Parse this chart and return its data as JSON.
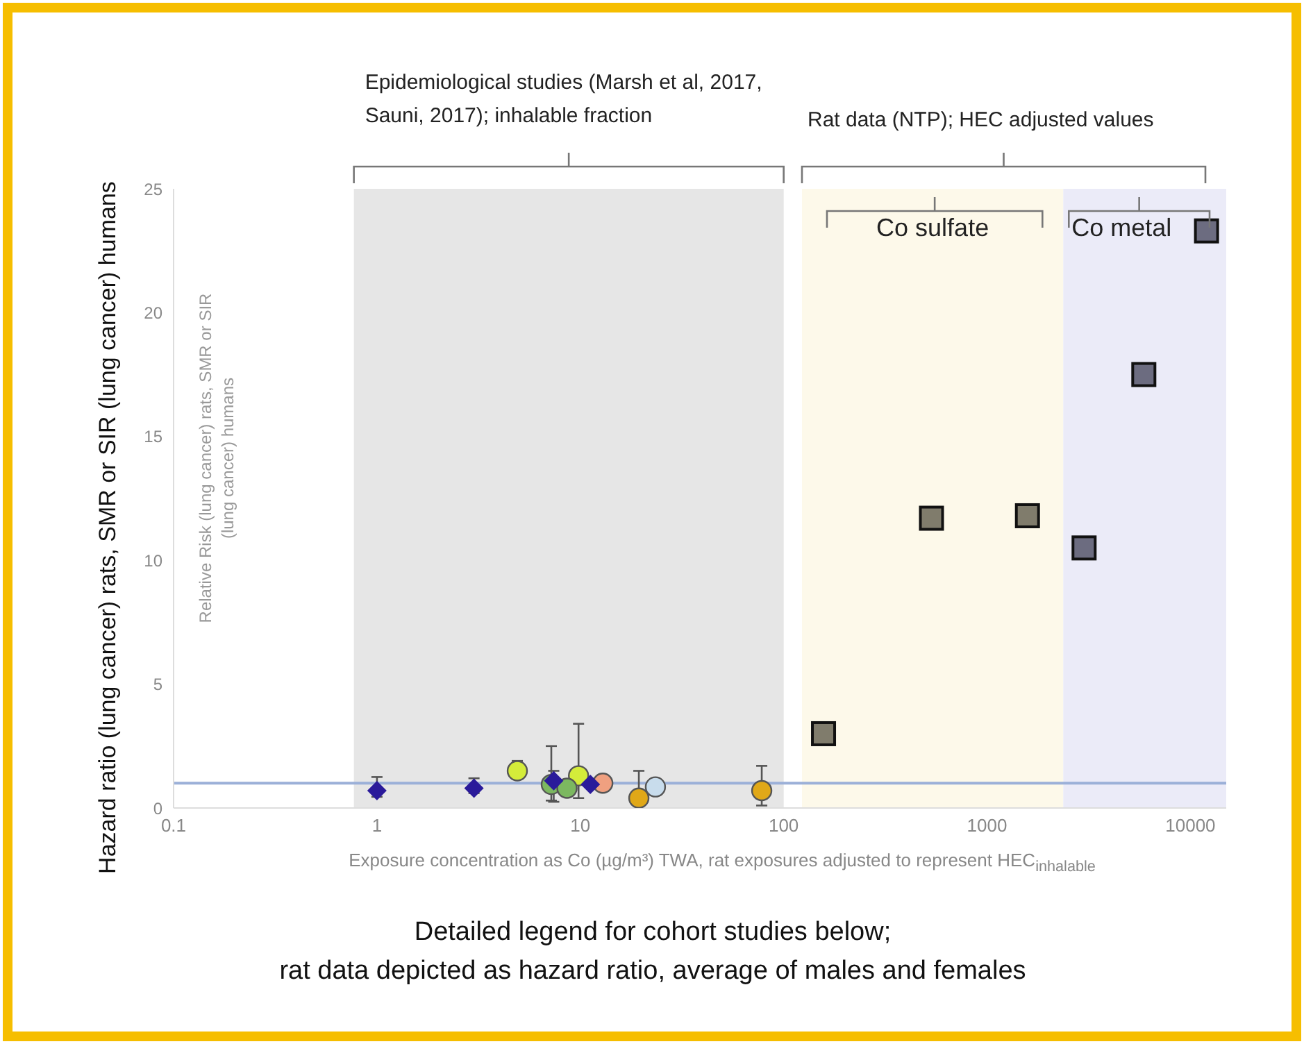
{
  "chart_data": {
    "type": "scatter",
    "ylabel": "Hazard ratio (lung cancer) rats, SMR or SIR (lung cancer) humans",
    "xlabel": "Exposure concentration as Co (µg/m³) TWA, rat exposures adjusted to represent HEC$_{inhalable}$",
    "log": "x",
    "xlim": [
      0.1,
      15000
    ],
    "xticks": [
      0.1,
      1,
      10,
      100,
      1000,
      10000
    ],
    "ylim": [
      0,
      25
    ],
    "yticks": [
      0,
      5,
      10,
      15,
      20,
      25
    ],
    "grid": false,
    "legend": false,
    "series": [
      {
        "color": "#2a1a9a",
        "marker": "diamond",
        "x": [
          1,
          3,
          7.4,
          11.2
        ],
        "values": [
          0.7,
          0.8,
          1.1,
          0.95
        ],
        "errors": [
          [
            0.45,
            1.25
          ],
          [
            0.6,
            1.2
          ],
          [
            0.25,
            1.5
          ],
          null
        ]
      },
      {
        "color": "#d4ec3a",
        "marker": "circle",
        "x": [
          4.9,
          9.8
        ],
        "values": [
          1.5,
          1.3
        ],
        "errors": [
          [
            1.2,
            1.9
          ],
          [
            0.4,
            3.4
          ]
        ]
      },
      {
        "color": "#7cb860",
        "marker": "circle",
        "x": [
          7.2,
          8.6
        ],
        "values": [
          0.95,
          0.8
        ],
        "errors": [
          [
            0.3,
            2.5
          ],
          null
        ]
      },
      {
        "color": "#f0a080",
        "marker": "circle",
        "x": [
          12.9
        ],
        "values": [
          1.0
        ]
      },
      {
        "color": "#e0a818",
        "marker": "circle",
        "x": [
          19.4,
          78
        ],
        "values": [
          0.4,
          0.7
        ],
        "errors": [
          [
            0.1,
            1.5
          ],
          [
            0.1,
            1.7
          ]
        ]
      },
      {
        "color": "#c8dcec",
        "marker": "circle",
        "x": [
          23.4
        ],
        "values": [
          0.85
        ]
      },
      {
        "color": "#807c6c",
        "marker": "square",
        "x": [
          157,
          533,
          1580
        ],
        "values": [
          3.0,
          11.7,
          11.8
        ]
      },
      {
        "color": "#6c6c80",
        "marker": "square",
        "x": [
          3000,
          5900,
          12000
        ],
        "values": [
          10.5,
          17.5,
          23.3
        ]
      }
    ],
    "ref_lines": [
      {
        "axis": "y",
        "value": 1,
        "color": "#9bb0d8"
      }
    ],
    "bands": [
      {
        "axis": "x",
        "from": 0.77,
        "to": 100,
        "label": "Epidemiological studies (Marsh et al, 2017, Sauni, 2017); inhalable fraction",
        "color": "#e6e6e6"
      },
      {
        "axis": "x",
        "from": 123,
        "to": 2370,
        "label": "Co sulfate",
        "color": "#fdf9ea"
      },
      {
        "axis": "x",
        "from": 2370,
        "to": 15000,
        "label": "Co metal",
        "color": "#ebebf8"
      }
    ],
    "annotations": [
      "Rat data (NTP); HEC adjusted values",
      "Relative Risk (lung cancer) rats, SMR or SIR (lung cancer) humans",
      "Detailed legend for cohort studies below;\nrat data depicted as hazard ratio, average of males and females"
    ]
  }
}
